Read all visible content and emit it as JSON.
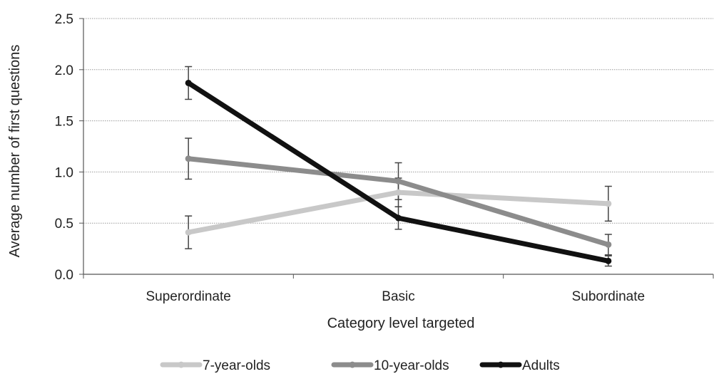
{
  "chart_data": {
    "type": "line",
    "title": "",
    "xlabel": "Category level targeted",
    "ylabel": "Average number of first questions",
    "ylim": [
      0,
      2.5
    ],
    "yticks": [
      "0.0",
      "0.5",
      "1.0",
      "1.5",
      "2.0",
      "2.5"
    ],
    "categories": [
      "Superordinate",
      "Basic",
      "Subordinate"
    ],
    "grid": true,
    "legend_position": "bottom",
    "series": [
      {
        "name": "7-year-olds",
        "color": "#c8c8c8",
        "values": [
          0.41,
          0.8,
          0.69
        ],
        "errors": [
          0.16,
          0.14,
          0.17
        ]
      },
      {
        "name": "10-year-olds",
        "color": "#8c8c8c",
        "values": [
          1.13,
          0.91,
          0.29
        ],
        "errors": [
          0.2,
          0.18,
          0.1
        ]
      },
      {
        "name": "Adults",
        "color": "#111111",
        "values": [
          1.87,
          0.55,
          0.13
        ],
        "errors": [
          0.16,
          0.11,
          0.05
        ]
      }
    ]
  }
}
